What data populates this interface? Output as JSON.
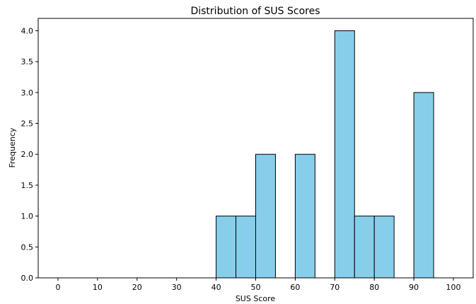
{
  "chart_data": {
    "type": "bar",
    "title": "Distribution of SUS Scores",
    "xlabel": "SUS Score",
    "ylabel": "Frequency",
    "xlim": [
      -5,
      105
    ],
    "ylim": [
      0,
      4.2
    ],
    "bin_width": 5,
    "bins": [
      {
        "x0": 0,
        "x1": 5,
        "value": 0
      },
      {
        "x0": 5,
        "x1": 10,
        "value": 0
      },
      {
        "x0": 10,
        "x1": 15,
        "value": 0
      },
      {
        "x0": 15,
        "x1": 20,
        "value": 0
      },
      {
        "x0": 20,
        "x1": 25,
        "value": 0
      },
      {
        "x0": 25,
        "x1": 30,
        "value": 0
      },
      {
        "x0": 30,
        "x1": 35,
        "value": 0
      },
      {
        "x0": 35,
        "x1": 40,
        "value": 0
      },
      {
        "x0": 40,
        "x1": 45,
        "value": 1
      },
      {
        "x0": 45,
        "x1": 50,
        "value": 1
      },
      {
        "x0": 50,
        "x1": 55,
        "value": 2
      },
      {
        "x0": 55,
        "x1": 60,
        "value": 0
      },
      {
        "x0": 60,
        "x1": 65,
        "value": 2
      },
      {
        "x0": 65,
        "x1": 70,
        "value": 0
      },
      {
        "x0": 70,
        "x1": 75,
        "value": 4
      },
      {
        "x0": 75,
        "x1": 80,
        "value": 1
      },
      {
        "x0": 80,
        "x1": 85,
        "value": 1
      },
      {
        "x0": 85,
        "x1": 90,
        "value": 0
      },
      {
        "x0": 90,
        "x1": 95,
        "value": 3
      },
      {
        "x0": 95,
        "x1": 100,
        "value": 0
      }
    ],
    "x_ticks": [
      0,
      10,
      20,
      30,
      40,
      50,
      60,
      70,
      80,
      90,
      100
    ],
    "y_ticks": [
      "0.0",
      "0.5",
      "1.0",
      "1.5",
      "2.0",
      "2.5",
      "3.0",
      "3.5",
      "4.0"
    ],
    "grid": false,
    "bar_color": "#87ceeb",
    "edge_color": "#000000"
  }
}
